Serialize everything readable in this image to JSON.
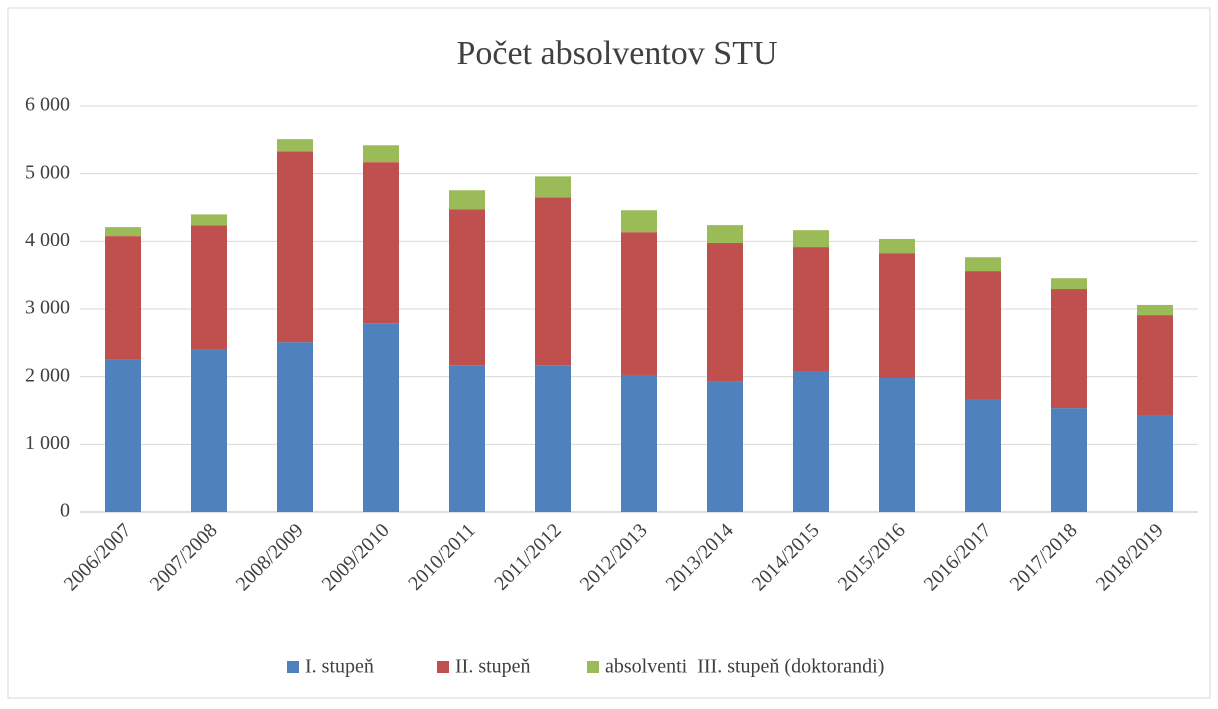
{
  "chart_data": {
    "type": "stacked_bar",
    "title": "Počet absolventov STU",
    "categories": [
      "2006/2007",
      "2007/2008",
      "2008/2009",
      "2009/2010",
      "2010/2011",
      "2011/2012",
      "2012/2013",
      "2013/2014",
      "2014/2015",
      "2015/2016",
      "2016/2017",
      "2017/2018",
      "2018/2019"
    ],
    "series": [
      {
        "name": "I. stupeň",
        "color": "#4f81bd",
        "values": [
          2260,
          2408,
          2510,
          2790,
          2170,
          2170,
          2025,
          1935,
          2070,
          1980,
          1670,
          1535,
          1420
        ]
      },
      {
        "name": "II. stupeň",
        "color": "#c0504d",
        "values": [
          1817,
          1830,
          2820,
          2380,
          2305,
          2480,
          2110,
          2040,
          1845,
          1845,
          1890,
          1760,
          1490
        ]
      },
      {
        "name": "absolventi  III. stupeň (doktorandi)",
        "color": "#9bbb59",
        "values": [
          133,
          160,
          180,
          250,
          280,
          310,
          325,
          265,
          250,
          210,
          205,
          160,
          150
        ]
      }
    ],
    "ylim": [
      0,
      6000
    ],
    "yticks": [
      0,
      {
        "value": 1000,
        "label": "1 000"
      },
      {
        "value": 2000,
        "label": "2 000"
      },
      {
        "value": 3000,
        "label": "3 000"
      },
      {
        "value": 4000,
        "label": "4 000"
      },
      {
        "value": 5000,
        "label": "5 000"
      },
      {
        "value": 6000,
        "label": "6 000"
      }
    ],
    "grid": true,
    "legend": "bottom"
  }
}
